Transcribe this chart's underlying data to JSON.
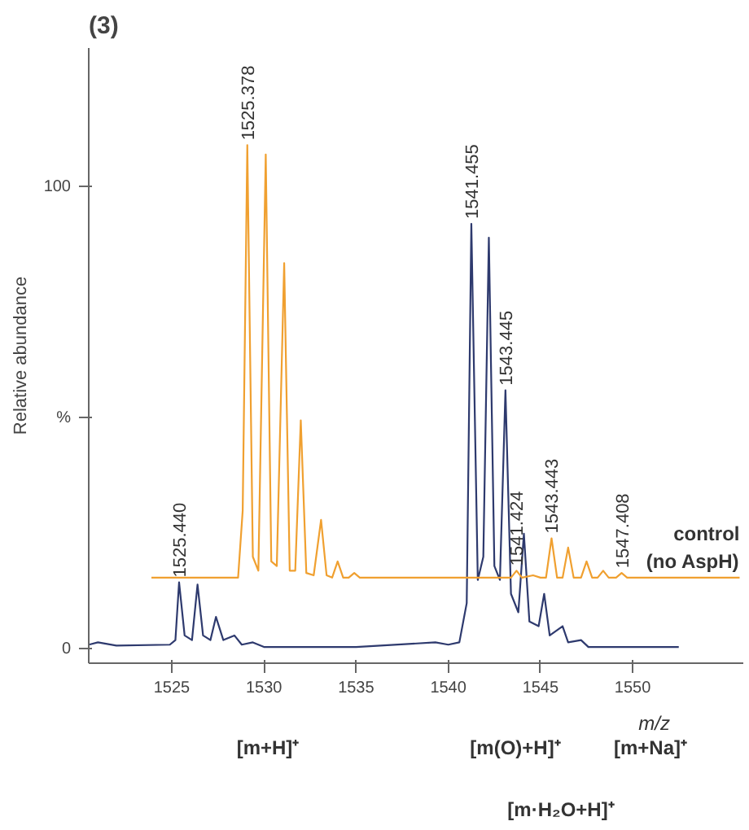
{
  "chart_data": {
    "type": "line",
    "title": "(3)",
    "xlabel": "m/z",
    "ylabel": "Relative abundance",
    "xlim": [
      1520.5,
      1556
    ],
    "xticks": [
      1525,
      1530,
      1535,
      1540,
      1545,
      1550
    ],
    "ylim": [
      -3,
      130
    ],
    "yticks": [
      0,
      {
        "value": 50,
        "label": "%"
      },
      100
    ],
    "grid": false,
    "marker": "none",
    "line_style": "solid",
    "series": [
      {
        "color": "#2e3a6e",
        "x": [
          1520.5,
          1521,
          1522,
          1524.9,
          1525.2,
          1525.4,
          1525.7,
          1526.1,
          1526.4,
          1526.7,
          1527.1,
          1527.4,
          1527.8,
          1528.4,
          1528.8,
          1529.4,
          1530,
          1535,
          1539.3,
          1540,
          1540.6,
          1541.0,
          1541.25,
          1541.6,
          1541.9,
          1542.2,
          1542.5,
          1542.8,
          1543.1,
          1543.4,
          1543.8,
          1544.1,
          1544.4,
          1544.9,
          1545.2,
          1545.5,
          1546.2,
          1546.5,
          1547.2,
          1547.6,
          1552.5
        ],
        "values": [
          1,
          1.5,
          0.8,
          1,
          2,
          14.5,
          3,
          2,
          14,
          3,
          2,
          7,
          2,
          3,
          1,
          1.5,
          0.5,
          0.5,
          1.5,
          1,
          1.5,
          10,
          92,
          15,
          20,
          89,
          18,
          15,
          56,
          12,
          8,
          25,
          6,
          5,
          12,
          3,
          5,
          1.5,
          2,
          0.5,
          0.5
        ]
      },
      {
        "name": "control\n(no AspH)",
        "color": "#f0a030",
        "x": [
          1523.9,
          1528.6,
          1528.85,
          1529.1,
          1529.4,
          1529.7,
          1530.1,
          1530.4,
          1530.7,
          1531.1,
          1531.4,
          1531.7,
          1532.0,
          1532.3,
          1532.7,
          1533.1,
          1533.4,
          1533.7,
          1534.0,
          1534.3,
          1534.6,
          1534.9,
          1535.2,
          1543.4,
          1543.7,
          1544.0,
          1544.6,
          1545.0,
          1545.3,
          1545.6,
          1545.9,
          1546.2,
          1546.5,
          1546.8,
          1547.2,
          1547.5,
          1547.8,
          1548.1,
          1548.4,
          1548.7,
          1549.1,
          1549.4,
          1549.7,
          1555.8
        ],
        "values": [
          15.5,
          15.5,
          30,
          109,
          20,
          17,
          107,
          19,
          18,
          83.5,
          17,
          17,
          49.5,
          16.5,
          16,
          28,
          16,
          15.5,
          19,
          15.5,
          15.5,
          16.5,
          15.5,
          15.5,
          17,
          15.5,
          16,
          15.5,
          15.5,
          24,
          15.5,
          15.5,
          22,
          15.5,
          15.5,
          19,
          15.5,
          15.5,
          17,
          15.5,
          15.5,
          16.5,
          15.5,
          15.5
        ]
      }
    ],
    "annotations": [
      {
        "text": "1525.378",
        "x": 1529.1,
        "y": 109
      },
      {
        "text": "1525.440",
        "x": 1525.4,
        "y": 14.5
      },
      {
        "text": "1541.455",
        "x": 1541.25,
        "y": 92
      },
      {
        "text": "1543.445",
        "x": 1543.1,
        "y": 56
      },
      {
        "text": "1541.424",
        "x": 1543.7,
        "y": 17
      },
      {
        "text": "1543.443",
        "x": 1545.6,
        "y": 24
      },
      {
        "text": "1547.408",
        "x": 1549.4,
        "y": 16.5
      },
      "[m+H]⁺",
      "[m(O)+H]⁺",
      "[m·H₂O+H]⁺",
      "[m+Na]⁺"
    ]
  }
}
